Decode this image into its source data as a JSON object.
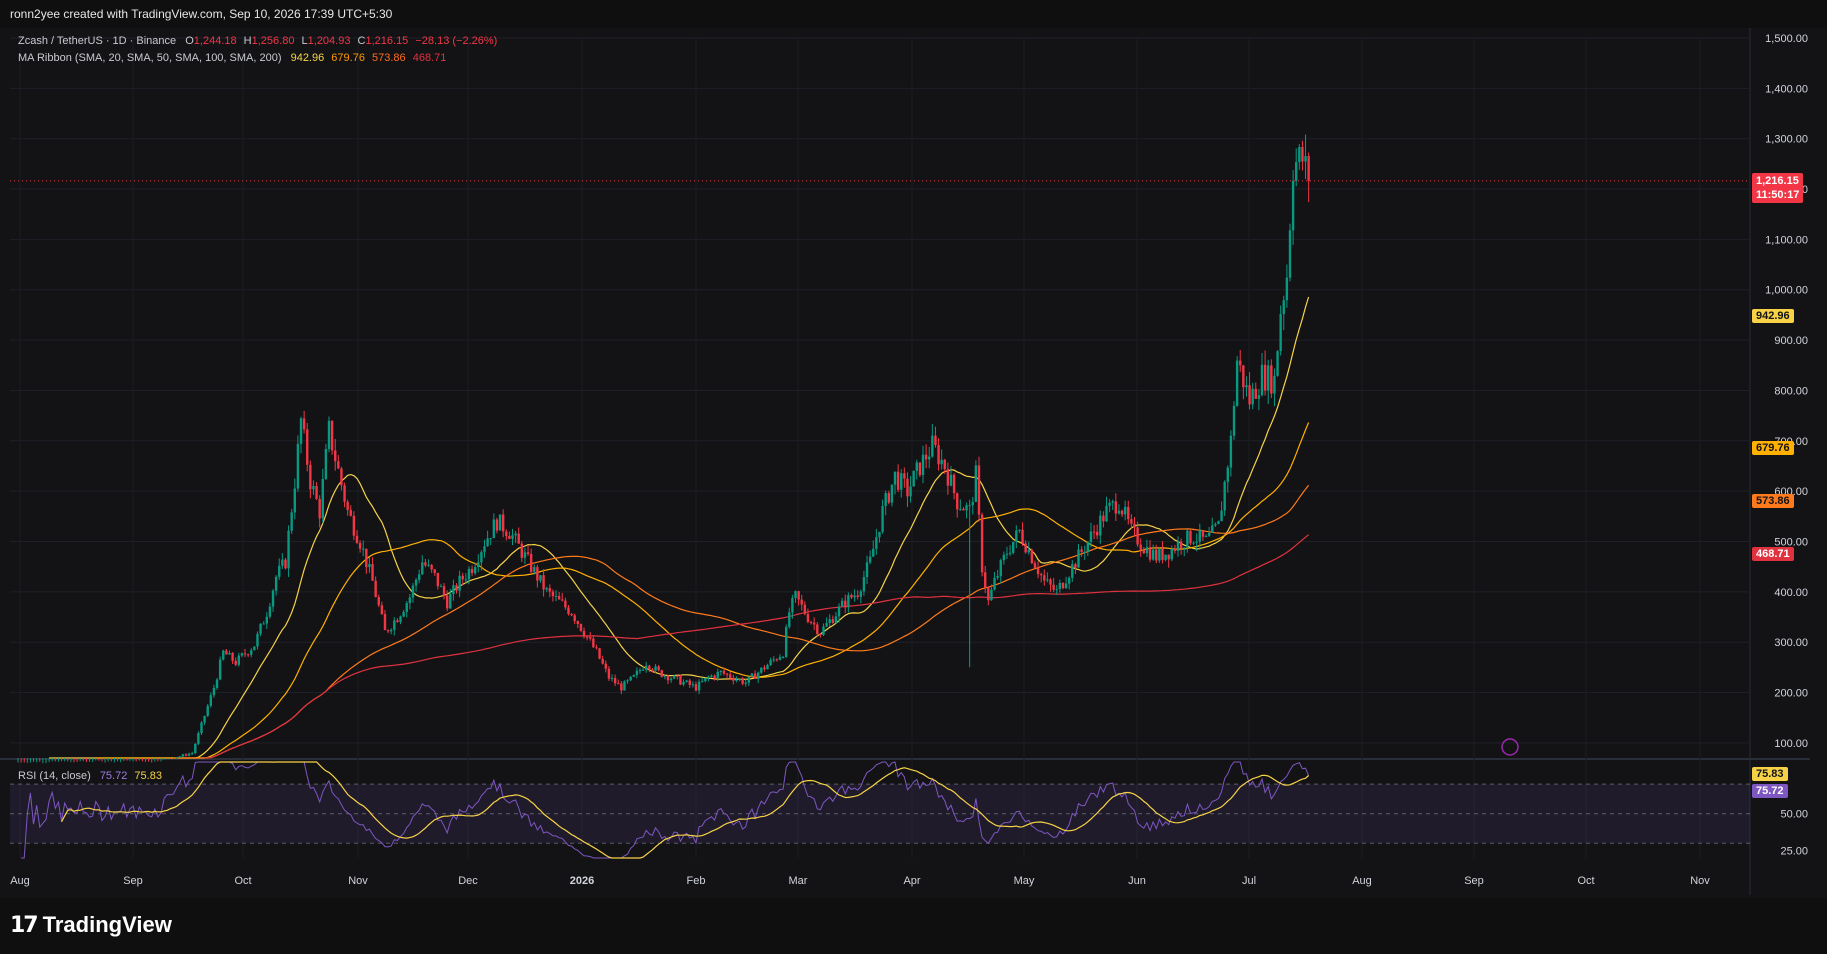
{
  "header": {
    "credit": "ronn2yee created with TradingView.com, Sep 10, 2026 17:39 UTC+5:30"
  },
  "legend": {
    "symbol": "Zcash / TetherUS · 1D · Binance",
    "o_label": "O",
    "o": "1,244.18",
    "h_label": "H",
    "h": "1,256.80",
    "l_label": "L",
    "l": "1,204.93",
    "c_label": "C",
    "c": "1,216.15",
    "change": "−28.13 (−2.26%)",
    "ma_title": "MA Ribbon (SMA, 20, SMA, 50, SMA, 100, SMA, 200)",
    "ma20": "942.96",
    "ma50": "679.76",
    "ma100": "573.86",
    "ma200": "468.71"
  },
  "rsi_legend": {
    "title": "RSI (14, close)",
    "rsi": "75.72",
    "rsi_ma": "75.83"
  },
  "badges": {
    "price": "1,216.15",
    "countdown": "11:50:17",
    "ma20": "942.96",
    "ma50": "679.76",
    "ma100": "573.86",
    "ma200": "468.71",
    "rsi_ma": "75.83",
    "rsi": "75.72"
  },
  "colors": {
    "up": "#089981",
    "down": "#f23645",
    "ma20": "#f7d247",
    "ma50": "#ffb000",
    "ma100": "#ff7a1a",
    "ma200": "#e0323e",
    "rsi": "#7e57c2",
    "rsi_ma": "#f7d247"
  },
  "footer": {
    "brand": "TradingView",
    "logo_icon": "tradingview-logo-icon"
  },
  "chart_data": {
    "type": "candlestick",
    "price_axis": {
      "ticks": [
        "1,500.00",
        "1,400.00",
        "1,300.00",
        "1,200.00",
        "1,100.00",
        "1,000.00",
        "900.00",
        "800.00",
        "700.00",
        "600.00",
        "500.00",
        "400.00",
        "300.00",
        "200.00",
        "100.00"
      ],
      "ylim": [
        70,
        1500
      ]
    },
    "rsi_axis": {
      "ticks": [
        "50.00",
        "25.00"
      ],
      "ylim": [
        20,
        85
      ],
      "band": [
        30,
        70
      ]
    },
    "time_axis": {
      "labels": [
        "Aug",
        "Sep",
        "Oct",
        "Nov",
        "Dec",
        "2026",
        "Feb",
        "Mar",
        "Apr",
        "May",
        "Jun",
        "Jul",
        "Aug",
        "Sep",
        "Oct",
        "Nov"
      ],
      "bold": "2026"
    },
    "last_close": 1216.15,
    "price_keypoints": [
      [
        0,
        60
      ],
      [
        45,
        62
      ],
      [
        56,
        80
      ],
      [
        63,
        210
      ],
      [
        66,
        280
      ],
      [
        70,
        260
      ],
      [
        76,
        295
      ],
      [
        80,
        360
      ],
      [
        83,
        430
      ],
      [
        86,
        460
      ],
      [
        89,
        620
      ],
      [
        91,
        740
      ],
      [
        94,
        620
      ],
      [
        97,
        560
      ],
      [
        100,
        720
      ],
      [
        103,
        640
      ],
      [
        106,
        560
      ],
      [
        110,
        500
      ],
      [
        114,
        420
      ],
      [
        118,
        320
      ],
      [
        122,
        350
      ],
      [
        126,
        390
      ],
      [
        130,
        460
      ],
      [
        134,
        430
      ],
      [
        138,
        380
      ],
      [
        142,
        420
      ],
      [
        146,
        450
      ],
      [
        150,
        500
      ],
      [
        154,
        540
      ],
      [
        158,
        520
      ],
      [
        162,
        480
      ],
      [
        166,
        440
      ],
      [
        170,
        400
      ],
      [
        174,
        380
      ],
      [
        178,
        360
      ],
      [
        182,
        320
      ],
      [
        186,
        280
      ],
      [
        190,
        230
      ],
      [
        194,
        210
      ],
      [
        198,
        230
      ],
      [
        202,
        260
      ],
      [
        206,
        240
      ],
      [
        210,
        230
      ],
      [
        214,
        220
      ],
      [
        218,
        210
      ],
      [
        222,
        230
      ],
      [
        226,
        240
      ],
      [
        230,
        230
      ],
      [
        234,
        220
      ],
      [
        238,
        240
      ],
      [
        242,
        260
      ],
      [
        246,
        280
      ],
      [
        248,
        360
      ],
      [
        250,
        390
      ],
      [
        254,
        350
      ],
      [
        258,
        320
      ],
      [
        262,
        350
      ],
      [
        266,
        380
      ],
      [
        270,
        400
      ],
      [
        274,
        460
      ],
      [
        278,
        560
      ],
      [
        282,
        630
      ],
      [
        286,
        600
      ],
      [
        290,
        650
      ],
      [
        294,
        690
      ],
      [
        298,
        650
      ],
      [
        302,
        580
      ],
      [
        306,
        560
      ],
      [
        308,
        630
      ],
      [
        310,
        450
      ],
      [
        312,
        380
      ],
      [
        314,
        420
      ],
      [
        318,
        480
      ],
      [
        322,
        520
      ],
      [
        326,
        470
      ],
      [
        330,
        420
      ],
      [
        334,
        400
      ],
      [
        338,
        440
      ],
      [
        342,
        480
      ],
      [
        346,
        520
      ],
      [
        350,
        560
      ],
      [
        354,
        580
      ],
      [
        358,
        520
      ],
      [
        362,
        490
      ],
      [
        366,
        470
      ],
      [
        370,
        480
      ],
      [
        374,
        500
      ],
      [
        378,
        510
      ],
      [
        382,
        500
      ],
      [
        386,
        530
      ],
      [
        390,
        700
      ],
      [
        392,
        860
      ],
      [
        396,
        780
      ],
      [
        400,
        830
      ],
      [
        404,
        820
      ],
      [
        406,
        960
      ],
      [
        408,
        1030
      ],
      [
        410,
        1250
      ],
      [
        413,
        1260
      ],
      [
        415,
        1216
      ]
    ],
    "ma_series": [
      {
        "name": "SMA 20",
        "last": 942.96
      },
      {
        "name": "SMA 50",
        "last": 679.76
      },
      {
        "name": "SMA 100",
        "last": 573.86
      },
      {
        "name": "SMA 200",
        "last": 468.71
      }
    ],
    "rsi_series": {
      "name": "RSI 14",
      "last": 75.72,
      "ma_last": 75.83
    }
  }
}
